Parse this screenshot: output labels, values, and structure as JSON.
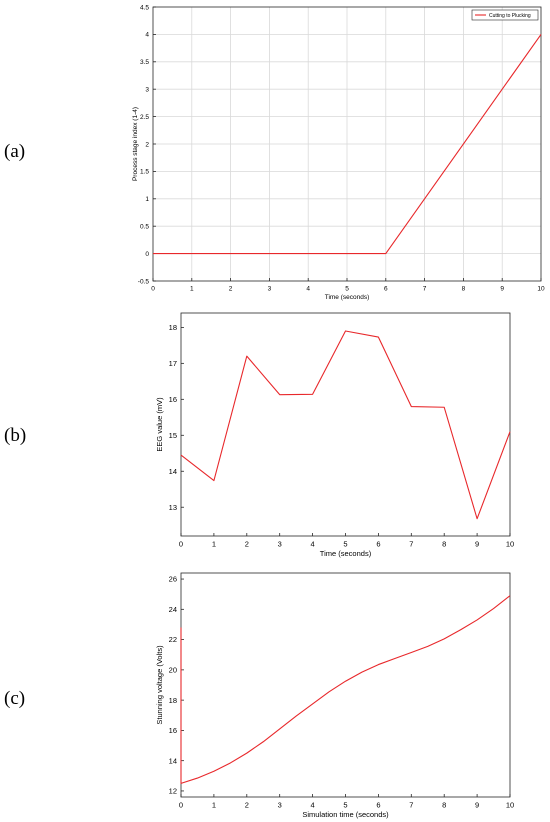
{
  "panels": [
    {
      "label": "(a)"
    },
    {
      "label": "(b)"
    },
    {
      "label": "(c)"
    }
  ],
  "chart_data": [
    {
      "type": "line",
      "xlabel": "Time (seconds)",
      "ylabel": "Process stage index (1-4)",
      "xlim": [
        0,
        10
      ],
      "ylim": [
        -0.5,
        4.5
      ],
      "xticks": [
        0,
        1,
        2,
        3,
        4,
        5,
        6,
        7,
        8,
        9,
        10
      ],
      "yticks": [
        -0.5,
        0,
        0.5,
        1,
        1.5,
        2,
        2.5,
        3,
        3.5,
        4,
        4.5
      ],
      "grid": true,
      "legend": "top-right",
      "color": "#e8282b",
      "series": [
        {
          "name": "Cutting to Plucking",
          "x": [
            0,
            6,
            10
          ],
          "y": [
            0,
            0,
            4
          ]
        }
      ]
    },
    {
      "type": "line",
      "xlabel": "Time (seconds)",
      "ylabel": "EEG value (mV)",
      "xlim": [
        0,
        10
      ],
      "ylim": [
        12.2,
        18.4
      ],
      "xticks": [
        0,
        1,
        2,
        3,
        4,
        5,
        6,
        7,
        8,
        9,
        10
      ],
      "yticks": [
        13,
        14,
        15,
        16,
        17,
        18
      ],
      "grid": false,
      "color": "#e8282b",
      "series": [
        {
          "x": [
            0,
            1,
            2,
            3,
            4,
            5,
            6,
            7,
            8,
            9,
            10
          ],
          "y": [
            14.45,
            13.74,
            17.2,
            16.13,
            16.14,
            17.9,
            17.73,
            15.8,
            15.78,
            12.68,
            15.1
          ]
        }
      ]
    },
    {
      "type": "line",
      "xlabel": "Simulation time (seconds)",
      "ylabel": "Stunning voltage (Volts)",
      "xlim": [
        0,
        10
      ],
      "ylim": [
        11.6,
        26.4
      ],
      "xticks": [
        0,
        1,
        2,
        3,
        4,
        5,
        6,
        7,
        8,
        9,
        10
      ],
      "yticks": [
        12,
        14,
        16,
        18,
        20,
        22,
        24,
        26
      ],
      "grid": false,
      "color": "#e8282b",
      "series": [
        {
          "x": [
            0,
            0,
            0.5,
            1,
            1.5,
            2,
            2.5,
            3,
            3.5,
            4,
            4.5,
            5,
            5.5,
            6,
            6.5,
            7,
            7.5,
            8,
            8.5,
            9,
            9.5,
            10
          ],
          "y": [
            22.8,
            12.5,
            12.85,
            13.3,
            13.85,
            14.5,
            15.25,
            16.1,
            16.95,
            17.75,
            18.55,
            19.25,
            19.85,
            20.35,
            20.75,
            21.15,
            21.55,
            22.05,
            22.65,
            23.3,
            24.05,
            24.9
          ]
        }
      ]
    }
  ]
}
